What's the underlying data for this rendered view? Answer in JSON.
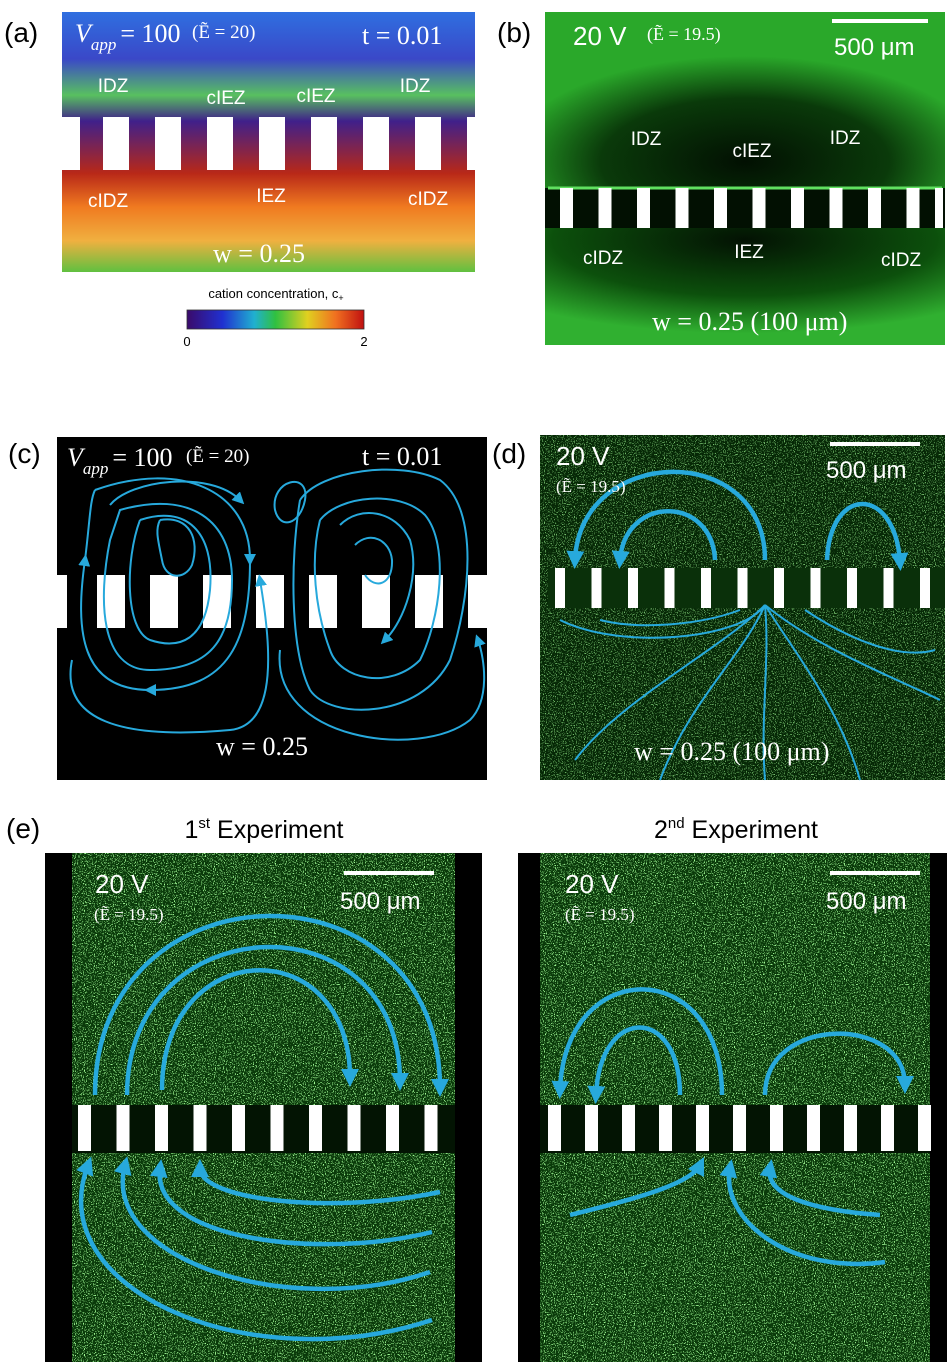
{
  "panels": {
    "a": {
      "label": "(a)",
      "voltage": {
        "symbol": "V",
        "subscript": "app",
        "value": "= 100"
      },
      "field": "(Ẽ = 20)",
      "time": "t = 0.01",
      "zones": [
        "IDZ",
        "cIEZ",
        "cIEZ",
        "IDZ",
        "cIDZ",
        "IEZ",
        "cIDZ"
      ],
      "width": "w = 0.25",
      "colorbar": {
        "label": "cation concentration, c",
        "label_subscript": "+",
        "min": 0,
        "max": 2
      }
    },
    "b": {
      "label": "(b)",
      "voltage": "20 V",
      "field": "(Ẽ = 19.5)",
      "scale_bar": "500 μm",
      "zones": [
        "IDZ",
        "cIEZ",
        "IDZ",
        "cIDZ",
        "IEZ",
        "cIDZ"
      ],
      "width": "w = 0.25 (100 μm)"
    },
    "c": {
      "label": "(c)",
      "voltage": {
        "symbol": "V",
        "subscript": "app",
        "value": "= 100"
      },
      "field": "(Ẽ = 20)",
      "time": "t = 0.01",
      "width": "w = 0.25"
    },
    "d": {
      "label": "(d)",
      "voltage": "20 V",
      "field": "(Ẽ = 19.5)",
      "scale_bar": "500 μm",
      "width": "w = 0.25 (100 μm)"
    },
    "e": {
      "label": "(e)",
      "experiments": [
        {
          "ordinal": "1",
          "suffix": "st",
          "title": " Experiment",
          "voltage": "20 V",
          "field": "(Ẽ = 19.5)",
          "scale_bar": "500 μm"
        },
        {
          "ordinal": "2",
          "suffix": "nd",
          "title": " Experiment",
          "voltage": "20 V",
          "field": "(Ẽ = 19.5)",
          "scale_bar": "500 μm"
        }
      ]
    }
  }
}
